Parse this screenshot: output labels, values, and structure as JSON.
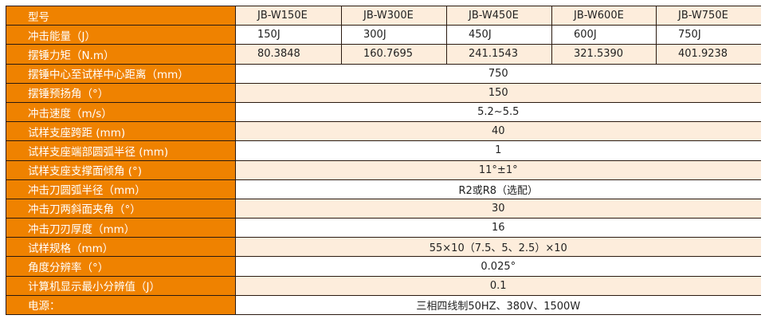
{
  "colors": {
    "label_bg": "#ef8200",
    "stripe": "#fdeddc"
  },
  "models_row": {
    "label": "型号",
    "values": [
      "JB-W150E",
      "JB-W300E",
      "JB-W450E",
      "JB-W600E",
      "JB-W750E"
    ]
  },
  "energy_row": {
    "label": "冲击能量（J）",
    "values": [
      "150J",
      "300J",
      "450J",
      "600J",
      "750J"
    ]
  },
  "torque_row": {
    "label": "摆锤力矩（N.m）",
    "values": [
      "80.3848",
      "160.7695",
      "241.1543",
      "321.5390",
      "401.9238"
    ]
  },
  "shared_rows": [
    {
      "label": "摆锤中心至试样中心距离（mm）",
      "value": "750"
    },
    {
      "label": "摆锤预扬角（°）",
      "value": "150"
    },
    {
      "label": "冲击速度（m/s）",
      "value": "5.2~5.5"
    },
    {
      "label": "试样支座跨距 (mm)",
      "value": "40"
    },
    {
      "label": "试样支座端部圆弧半径 (mm)",
      "value": "1"
    },
    {
      "label": "试样支座支撑面倾角 (°)",
      "value": "11°±1°"
    },
    {
      "label": "冲击刀圆弧半径（mm）",
      "value": "R2或R8（选配）"
    },
    {
      "label": "冲击刀两斜面夹角（°）",
      "value": "30"
    },
    {
      "label": "冲击刀刃厚度（mm）",
      "value": "16"
    },
    {
      "label": "试样规格（mm）",
      "value": "55×10（7.5、5、2.5）×10"
    },
    {
      "label": "角度分辨率（°）",
      "value": "0.025°"
    },
    {
      "label": "计算机显示最小分辨值（J）",
      "value": "0.1"
    },
    {
      "label": "电源：",
      "value": "三相四线制50HZ、380V、1500W"
    }
  ]
}
